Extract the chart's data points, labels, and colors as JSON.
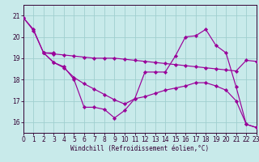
{
  "xlabel": "Windchill (Refroidissement éolien,°C)",
  "xlim": [
    0,
    23
  ],
  "ylim": [
    15.5,
    21.5
  ],
  "yticks": [
    16,
    17,
    18,
    19,
    20,
    21
  ],
  "xticks": [
    0,
    1,
    2,
    3,
    4,
    5,
    6,
    7,
    8,
    9,
    10,
    11,
    12,
    13,
    14,
    15,
    16,
    17,
    18,
    19,
    20,
    21,
    22,
    23
  ],
  "bg_color": "#c8eaea",
  "grid_color": "#a0cfcf",
  "line_color": "#990099",
  "line1_x": [
    0,
    1,
    2,
    3
  ],
  "line1_y": [
    20.9,
    20.3,
    19.25,
    19.25
  ],
  "line2_x": [
    2,
    3,
    4,
    5,
    6,
    7,
    8,
    9,
    10,
    11,
    12,
    13,
    14,
    15,
    16,
    17,
    18,
    19,
    20,
    21,
    22,
    23
  ],
  "line2_y": [
    19.25,
    18.8,
    18.6,
    18.0,
    16.7,
    16.7,
    16.6,
    16.2,
    16.55,
    17.1,
    18.35,
    18.35,
    18.35,
    19.1,
    20.0,
    20.05,
    20.35,
    19.6,
    19.25,
    17.65,
    15.9,
    15.75
  ],
  "line3_x": [
    2,
    3,
    4,
    5,
    6,
    7,
    8,
    9,
    10,
    11,
    12,
    13,
    14,
    15,
    16,
    17,
    18,
    19,
    20,
    21,
    22,
    23
  ],
  "line3_y": [
    19.25,
    19.2,
    19.15,
    19.1,
    19.05,
    19.0,
    19.0,
    19.0,
    18.95,
    18.9,
    18.85,
    18.8,
    18.75,
    18.7,
    18.65,
    18.6,
    18.55,
    18.5,
    18.45,
    18.4,
    18.9,
    18.85
  ],
  "line4_x": [
    0,
    1,
    2,
    3,
    4,
    5,
    6,
    7,
    8,
    9,
    10,
    11,
    12,
    13,
    14,
    15,
    16,
    17,
    18,
    19,
    20,
    21,
    22,
    23
  ],
  "line4_y": [
    20.9,
    20.35,
    19.25,
    18.8,
    18.55,
    18.1,
    17.8,
    17.55,
    17.3,
    17.05,
    16.85,
    17.1,
    17.2,
    17.35,
    17.5,
    17.6,
    17.7,
    17.85,
    17.85,
    17.7,
    17.5,
    17.0,
    15.9,
    15.75
  ]
}
